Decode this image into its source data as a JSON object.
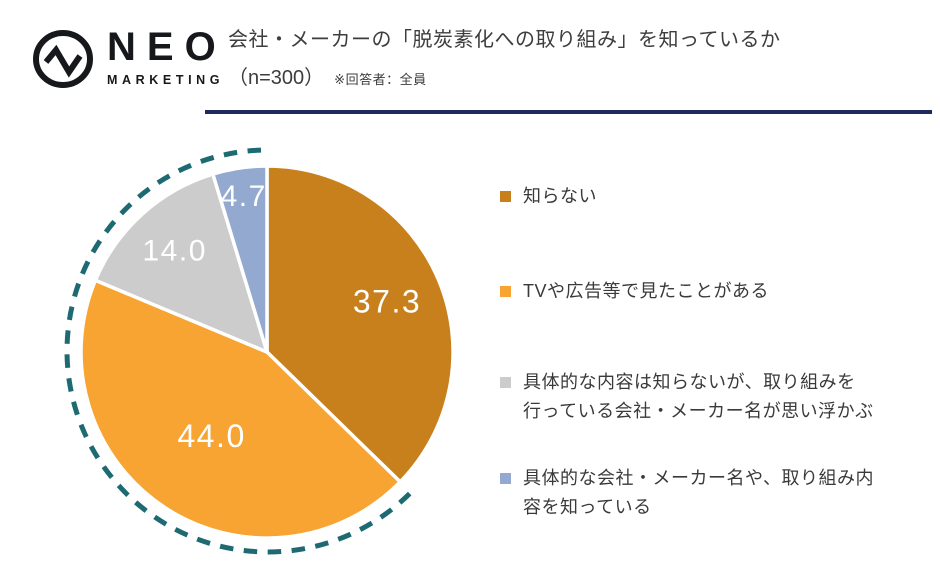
{
  "header": {
    "logo_name": "NEO",
    "logo_sub": "MARKETING",
    "logo_icon": "pulse-circle-icon",
    "title": "会社・メーカーの「脱炭素化への取り組み」を知っているか",
    "sample_size": "（n=300）",
    "respondent_note": "※回答者：全員"
  },
  "divider_color": "#1f2a5c",
  "chart_data": {
    "type": "pie",
    "title": "会社・メーカーの「脱炭素化への取り組み」を知っているか（n=300）※回答者：全員",
    "unit": "%",
    "start_angle": "12 o'clock",
    "direction": "clockwise",
    "legend_position": "right",
    "slices": [
      {
        "label": "知らない",
        "value": 37.3,
        "color": "#C8801D"
      },
      {
        "label": "TVや広告等で見たことがある",
        "value": 44.0,
        "color": "#F8A433"
      },
      {
        "label": "具体的な内容は知らないが、取り組みを\n行っている会社・メーカー名が思い浮かぶ",
        "value": 14.0,
        "color": "#CCCCCC"
      },
      {
        "label": "具体的な会社・メーカー名や、取り組み内\n容を知っている",
        "value": 4.7,
        "color": "#93A9D0"
      }
    ],
    "value_label_color": "#ffffff",
    "decoration": {
      "dashed_ring_color": "#1E6A73",
      "slice_border_color": "#ffffff"
    }
  }
}
